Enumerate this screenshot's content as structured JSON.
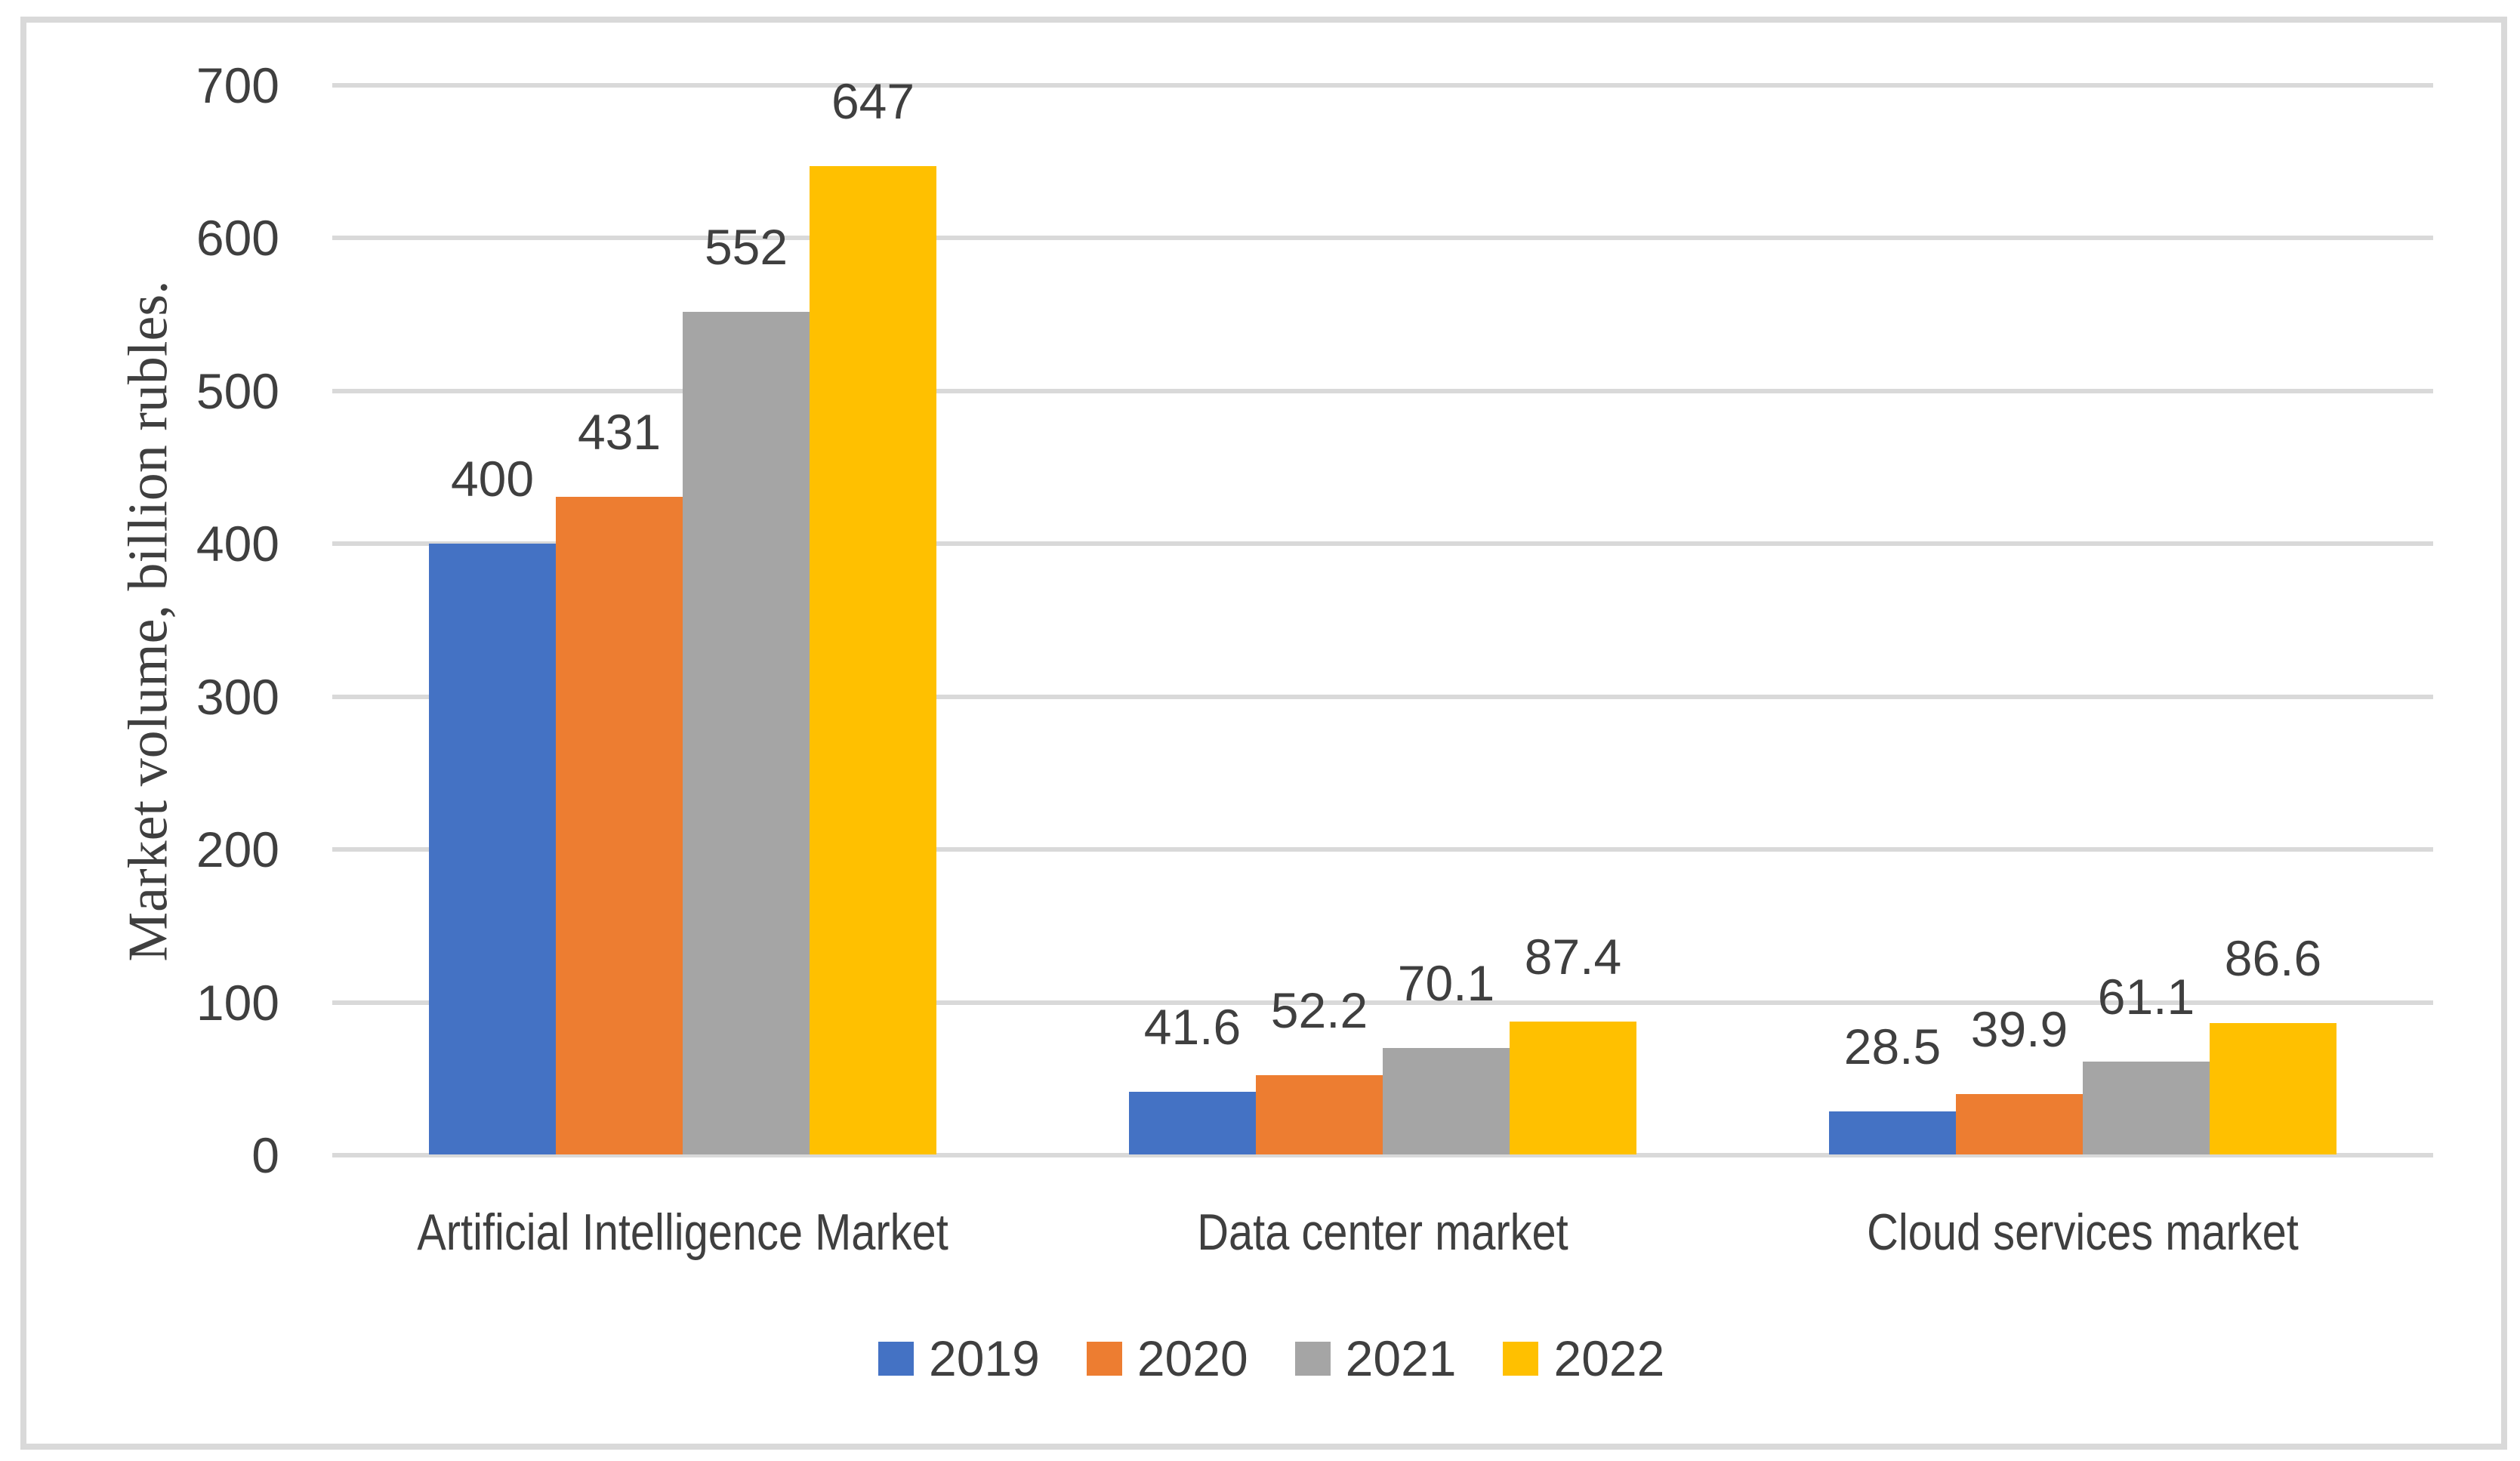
{
  "chart_data": {
    "type": "bar",
    "title": "",
    "ylabel": "Market volume, billion rubles.",
    "xlabel": "",
    "categories": [
      "Artificial Intelligence Market",
      "Data center market",
      "Cloud services market"
    ],
    "series": [
      {
        "name": "2019",
        "color": "#4472C4",
        "values": [
          400,
          41.6,
          28.5
        ],
        "labels": [
          "400",
          "41.6",
          "28.5"
        ]
      },
      {
        "name": "2020",
        "color": "#ED7D31",
        "values": [
          431,
          52.2,
          39.9
        ],
        "labels": [
          "431",
          "52.2",
          "39.9"
        ]
      },
      {
        "name": "2021",
        "color": "#A5A5A5",
        "values": [
          552,
          70.1,
          61.1
        ],
        "labels": [
          "552",
          "70.1",
          "61.1"
        ]
      },
      {
        "name": "2022",
        "color": "#FFC000",
        "values": [
          647,
          87.4,
          86.6
        ],
        "labels": [
          "647",
          "87.4",
          "86.6"
        ]
      }
    ],
    "y_axis": {
      "min": 0,
      "max": 700,
      "step": 100,
      "tick_labels": [
        "0",
        "100",
        "200",
        "300",
        "400",
        "500",
        "600",
        "700"
      ]
    },
    "grid": true,
    "legend_position": "bottom",
    "colors": {
      "gridline": "#D9D9D9",
      "border": "#D9D9D9",
      "text": "#3F3F3F"
    }
  }
}
